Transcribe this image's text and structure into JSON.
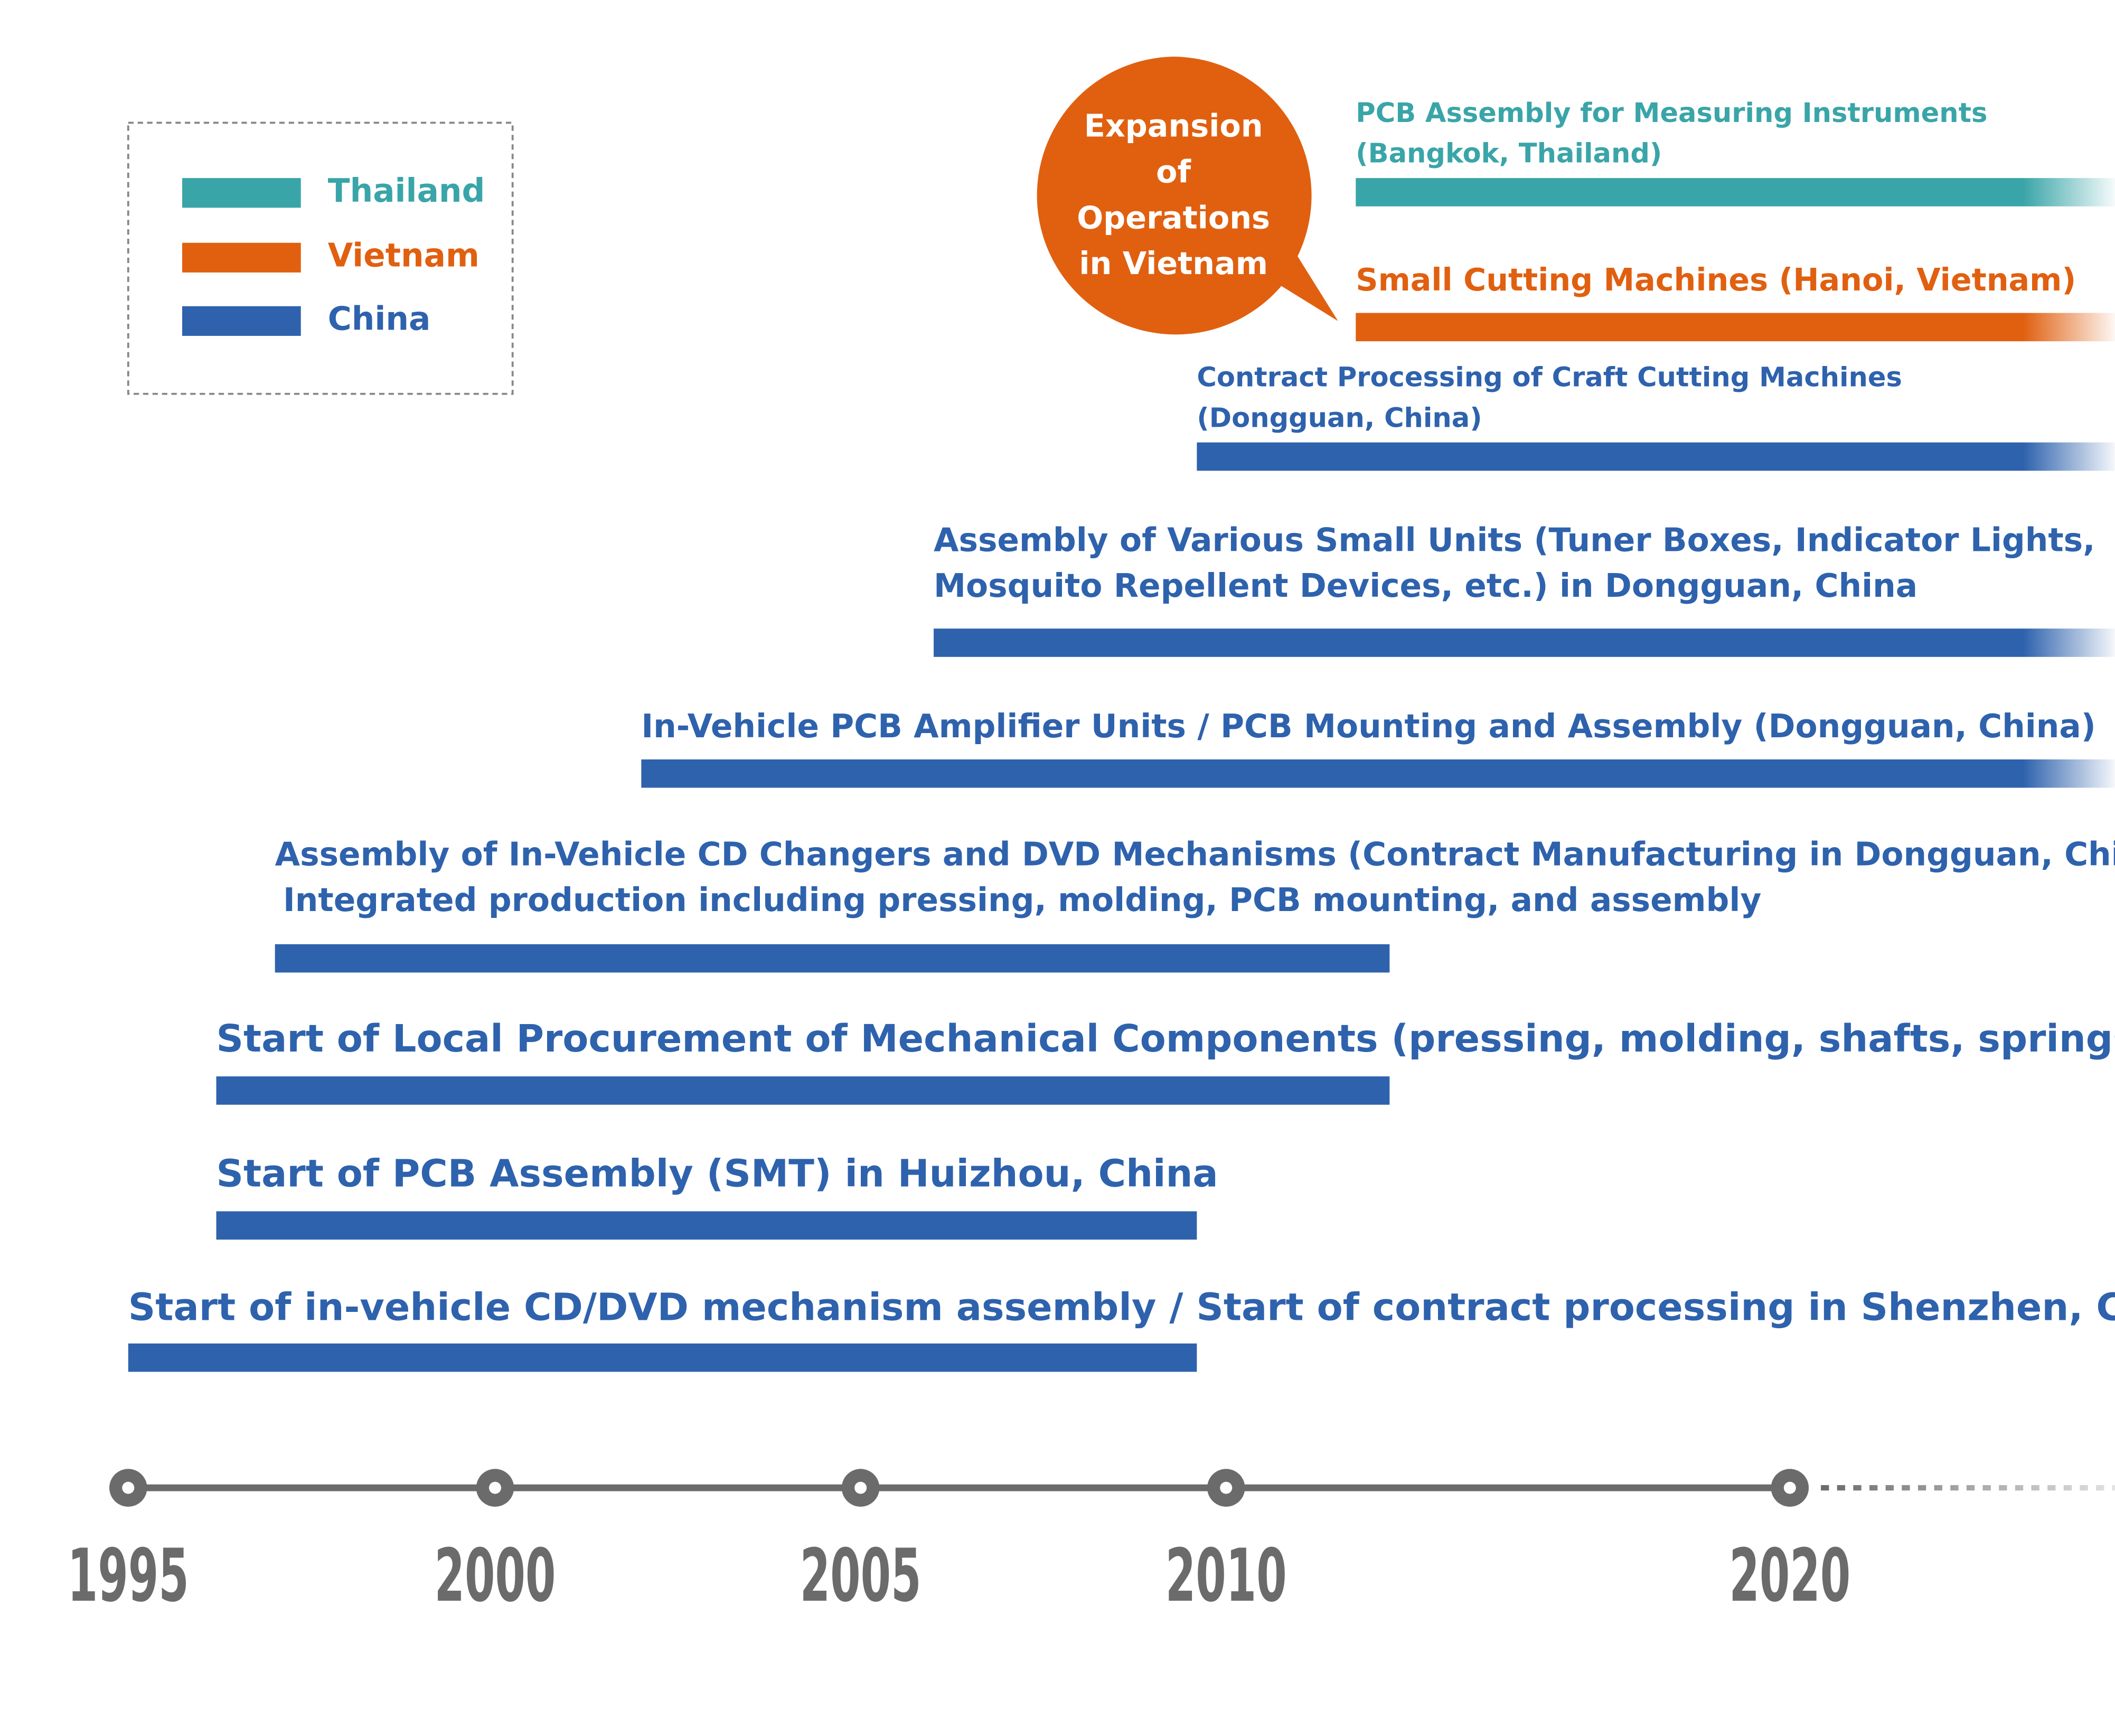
{
  "chart_data": {
    "type": "timeline",
    "legend": [
      {
        "name": "Thailand",
        "color": "#3aa5a8"
      },
      {
        "name": "Vietnam",
        "color": "#e06010"
      },
      {
        "name": "China",
        "color": "#2e62ad"
      }
    ],
    "annotation": [
      "Expansion",
      "of",
      "Operations",
      "in Vietnam"
    ],
    "annotation_color": "#e06010",
    "tasks": [
      {
        "label": [
          "PCB Assembly for Measuring Instruments",
          "(Bangkok, Thailand)"
        ],
        "color": "#3aa5a8",
        "start": 2012.3,
        "end": null
      },
      {
        "label": [
          "Small Cutting Machines (Hanoi, Vietnam)"
        ],
        "color": "#e06010",
        "start": 2012.3,
        "end": null
      },
      {
        "label": [
          "Contract Processing of Craft Cutting Machines",
          "(Dongguan, China)"
        ],
        "color": "#2e62ad",
        "start": 2009.6,
        "end": null
      },
      {
        "label": [
          "Assembly of Various Small Units (Tuner Boxes, Indicator Lights,",
          "Mosquito Repellent Devices, etc.) in Dongguan, China"
        ],
        "color": "#2e62ad",
        "start": 2006.0,
        "end": null
      },
      {
        "label": [
          "In-Vehicle PCB Amplifier Units / PCB Mounting and Assembly (Dongguan, China)"
        ],
        "color": "#2e62ad",
        "start": 2002.0,
        "end": null
      },
      {
        "label": [
          "Assembly of In-Vehicle CD Changers and DVD Mechanisms (Contract Manufacturing in Dongguan, China)",
          "Integrated production including pressing, molding, PCB mounting, and assembly"
        ],
        "color": "#2e62ad",
        "start": 1997.0,
        "end": 2012.9
      },
      {
        "label": [
          "Start of Local Procurement of Mechanical Components (pressing, molding, shafts, springs, etc.)"
        ],
        "color": "#2e62ad",
        "start": 1996.2,
        "end": 2012.9
      },
      {
        "label": [
          "Start of PCB Assembly (SMT) in Huizhou, China"
        ],
        "color": "#2e62ad",
        "start": 1996.2,
        "end": 2009.6
      },
      {
        "label": [
          "Start of in-vehicle CD/DVD mechanism assembly / Start of contract processing in Shenzhen, China"
        ],
        "color": "#2e62ad",
        "start": 1995,
        "end": 2009.6
      }
    ],
    "xticks": [
      1995,
      2000,
      2005,
      2010,
      2020
    ],
    "axis_color": "#6b6b6b"
  }
}
